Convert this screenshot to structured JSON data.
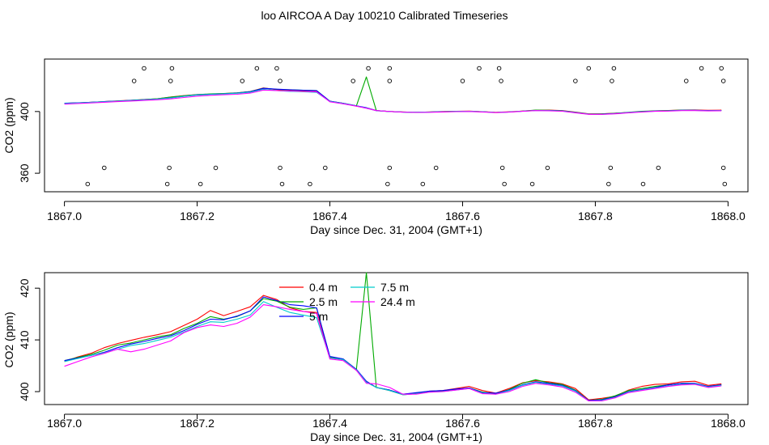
{
  "title": "loo AIRCOA A  Day 100210  Calibrated Timeseries",
  "chart_data": [
    {
      "type": "line",
      "xlabel": "Day since Dec. 31, 2004 (GMT+1)",
      "ylabel": "CO2 (ppm)",
      "xlim": [
        1866.97,
        1868.03
      ],
      "ylim": [
        348,
        434
      ],
      "xticks": [
        1867.0,
        1867.2,
        1867.4,
        1867.6,
        1867.8,
        1868.0
      ],
      "xtick_labels": [
        "1867.0",
        "1867.2",
        "1867.4",
        "1867.6",
        "1867.8",
        "1868.0"
      ],
      "yticks": [
        360,
        400
      ],
      "ytick_labels": [
        "360",
        "400"
      ],
      "x": [
        1867.0,
        1867.02,
        1867.04,
        1867.06,
        1867.08,
        1867.1,
        1867.12,
        1867.14,
        1867.16,
        1867.18,
        1867.2,
        1867.22,
        1867.24,
        1867.26,
        1867.28,
        1867.3,
        1867.32,
        1867.34,
        1867.36,
        1867.38,
        1867.4,
        1867.42,
        1867.44,
        1867.455,
        1867.47,
        1867.49,
        1867.51,
        1867.53,
        1867.55,
        1867.57,
        1867.59,
        1867.61,
        1867.63,
        1867.65,
        1867.67,
        1867.69,
        1867.71,
        1867.73,
        1867.75,
        1867.77,
        1867.79,
        1867.81,
        1867.83,
        1867.85,
        1867.87,
        1867.89,
        1867.91,
        1867.93,
        1867.95,
        1867.97,
        1867.99
      ],
      "series": [
        {
          "name": "0.4 m",
          "color": "#ff0000",
          "values": [
            405.3,
            405.6,
            406.0,
            406.4,
            406.9,
            407.3,
            407.8,
            408.3,
            409.4,
            410.3,
            411.0,
            411.3,
            411.6,
            412.1,
            412.9,
            415.3,
            414.2,
            413.8,
            413.6,
            413.3,
            406.5,
            405.3,
            403.5,
            402.4,
            400.6,
            400.0,
            399.7,
            399.5,
            399.7,
            400.0,
            400.2,
            400.3,
            399.9,
            399.5,
            399.8,
            400.3,
            400.8,
            400.9,
            400.6,
            399.6,
            398.5,
            398.5,
            398.9,
            399.4,
            399.9,
            400.4,
            400.7,
            400.9,
            401.0,
            400.8,
            400.9
          ]
        },
        {
          "name": "2.5 m",
          "color": "#00aa00",
          "values": [
            405.3,
            405.6,
            406.0,
            406.4,
            406.8,
            407.2,
            407.8,
            408.3,
            409.3,
            410.2,
            411.0,
            411.4,
            411.7,
            412.1,
            412.9,
            415.1,
            414.4,
            414.0,
            413.8,
            413.6,
            406.7,
            405.3,
            403.7,
            422.4,
            400.6,
            400.0,
            399.7,
            399.5,
            399.7,
            399.9,
            400.1,
            400.2,
            399.8,
            399.4,
            399.7,
            400.3,
            400.9,
            400.8,
            400.5,
            399.5,
            398.4,
            398.5,
            398.8,
            399.5,
            400.1,
            400.4,
            400.6,
            400.9,
            400.8,
            400.6,
            400.7
          ]
        },
        {
          "name": "5 m",
          "color": "#0000ff",
          "values": [
            405.4,
            405.7,
            406.0,
            406.4,
            406.8,
            407.2,
            407.6,
            408.1,
            408.9,
            409.9,
            410.8,
            411.2,
            411.5,
            412.0,
            412.8,
            415.0,
            414.5,
            414.1,
            413.8,
            413.5,
            406.7,
            405.3,
            403.7,
            402.5,
            400.6,
            400.0,
            399.6,
            399.5,
            399.6,
            399.9,
            400.0,
            400.1,
            399.8,
            399.4,
            399.7,
            400.2,
            400.7,
            400.7,
            400.4,
            399.4,
            398.3,
            398.3,
            398.7,
            399.4,
            399.9,
            400.3,
            400.5,
            400.8,
            400.8,
            400.6,
            400.7
          ]
        },
        {
          "name": "7.5 m",
          "color": "#00cccc",
          "values": [
            405.2,
            405.5,
            405.9,
            406.3,
            406.7,
            407.1,
            407.5,
            408.1,
            408.8,
            409.8,
            410.7,
            411.1,
            411.4,
            411.8,
            412.5,
            414.4,
            413.6,
            413.1,
            412.8,
            412.4,
            406.5,
            405.2,
            403.6,
            402.3,
            400.5,
            400.0,
            399.6,
            399.5,
            399.6,
            399.8,
            400.0,
            400.1,
            399.8,
            399.4,
            399.7,
            400.2,
            400.6,
            400.6,
            400.3,
            399.3,
            398.3,
            398.2,
            398.6,
            399.3,
            399.8,
            400.2,
            400.4,
            400.7,
            400.7,
            400.5,
            400.6
          ]
        },
        {
          "name": "24.4 m",
          "color": "#ff00ff",
          "values": [
            404.8,
            405.2,
            405.6,
            406.0,
            406.4,
            406.8,
            407.2,
            407.6,
            408.2,
            409.1,
            410.0,
            410.5,
            410.9,
            411.2,
            411.9,
            413.9,
            413.6,
            413.3,
            413.0,
            412.8,
            406.3,
            405.0,
            403.5,
            402.1,
            400.6,
            400.0,
            399.6,
            399.4,
            399.5,
            399.7,
            399.9,
            400.0,
            399.7,
            399.3,
            399.6,
            400.1,
            400.6,
            400.5,
            400.2,
            399.2,
            398.2,
            398.2,
            398.5,
            399.2,
            399.7,
            400.1,
            400.3,
            400.6,
            400.6,
            400.4,
            400.5
          ]
        }
      ],
      "markers": [
        {
          "x": 1867.035,
          "y": 353
        },
        {
          "x": 1867.06,
          "y": 363.5
        },
        {
          "x": 1867.105,
          "y": 419.8
        },
        {
          "x": 1867.12,
          "y": 428
        },
        {
          "x": 1867.155,
          "y": 353
        },
        {
          "x": 1867.158,
          "y": 363.5
        },
        {
          "x": 1867.16,
          "y": 419.8
        },
        {
          "x": 1867.162,
          "y": 428
        },
        {
          "x": 1867.205,
          "y": 353
        },
        {
          "x": 1867.228,
          "y": 363.5
        },
        {
          "x": 1867.268,
          "y": 419.8
        },
        {
          "x": 1867.29,
          "y": 428
        },
        {
          "x": 1867.32,
          "y": 428
        },
        {
          "x": 1867.325,
          "y": 419.8
        },
        {
          "x": 1867.325,
          "y": 363.5
        },
        {
          "x": 1867.328,
          "y": 353
        },
        {
          "x": 1867.37,
          "y": 353
        },
        {
          "x": 1867.393,
          "y": 363.5
        },
        {
          "x": 1867.435,
          "y": 419.8
        },
        {
          "x": 1867.458,
          "y": 428
        },
        {
          "x": 1867.487,
          "y": 353
        },
        {
          "x": 1867.49,
          "y": 363.5
        },
        {
          "x": 1867.49,
          "y": 419.8
        },
        {
          "x": 1867.49,
          "y": 428
        },
        {
          "x": 1867.54,
          "y": 353
        },
        {
          "x": 1867.56,
          "y": 363.5
        },
        {
          "x": 1867.6,
          "y": 419.8
        },
        {
          "x": 1867.625,
          "y": 428
        },
        {
          "x": 1867.655,
          "y": 428
        },
        {
          "x": 1867.658,
          "y": 419.8
        },
        {
          "x": 1867.66,
          "y": 363.5
        },
        {
          "x": 1867.663,
          "y": 353
        },
        {
          "x": 1867.705,
          "y": 353
        },
        {
          "x": 1867.728,
          "y": 363.5
        },
        {
          "x": 1867.77,
          "y": 419.8
        },
        {
          "x": 1867.79,
          "y": 428
        },
        {
          "x": 1867.82,
          "y": 353
        },
        {
          "x": 1867.823,
          "y": 363.5
        },
        {
          "x": 1867.825,
          "y": 419.8
        },
        {
          "x": 1867.828,
          "y": 428
        },
        {
          "x": 1867.872,
          "y": 353
        },
        {
          "x": 1867.895,
          "y": 363.5
        },
        {
          "x": 1867.937,
          "y": 419.8
        },
        {
          "x": 1867.96,
          "y": 428
        },
        {
          "x": 1867.99,
          "y": 428
        },
        {
          "x": 1867.993,
          "y": 419.8
        },
        {
          "x": 1867.993,
          "y": 363.5
        },
        {
          "x": 1867.995,
          "y": 353
        }
      ],
      "grid": false,
      "legend": "none"
    },
    {
      "type": "line",
      "xlabel": "Day since Dec. 31, 2004 (GMT+1)",
      "ylabel": "CO2 (ppm)",
      "xlim": [
        1866.97,
        1868.03
      ],
      "ylim": [
        397.5,
        423
      ],
      "xticks": [
        1867.0,
        1867.2,
        1867.4,
        1867.6,
        1867.8,
        1868.0
      ],
      "xtick_labels": [
        "1867.0",
        "1867.2",
        "1867.4",
        "1867.6",
        "1867.8",
        "1868.0"
      ],
      "yticks": [
        400,
        410,
        420
      ],
      "ytick_labels": [
        "400",
        "410",
        "420"
      ],
      "x": [
        1867.0,
        1867.02,
        1867.04,
        1867.06,
        1867.08,
        1867.1,
        1867.12,
        1867.14,
        1867.16,
        1867.18,
        1867.2,
        1867.22,
        1867.24,
        1867.26,
        1867.28,
        1867.3,
        1867.32,
        1867.34,
        1867.36,
        1867.38,
        1867.4,
        1867.42,
        1867.44,
        1867.455,
        1867.47,
        1867.49,
        1867.51,
        1867.53,
        1867.55,
        1867.57,
        1867.59,
        1867.61,
        1867.63,
        1867.65,
        1867.67,
        1867.69,
        1867.71,
        1867.73,
        1867.75,
        1867.77,
        1867.79,
        1867.81,
        1867.83,
        1867.85,
        1867.87,
        1867.89,
        1867.91,
        1867.93,
        1867.95,
        1867.97,
        1867.99
      ],
      "series": [
        {
          "name": "0.4 m",
          "color": "#ff0000",
          "values": [
            405.8,
            406.7,
            407.4,
            408.5,
            409.3,
            409.9,
            410.5,
            411.0,
            411.6,
            412.8,
            414.0,
            415.7,
            414.7,
            415.5,
            416.4,
            418.6,
            417.8,
            416.2,
            415.5,
            415.3,
            406.5,
            406.2,
            404.1,
            402.0,
            400.8,
            400.2,
            399.4,
            399.6,
            400.1,
            400.2,
            400.6,
            401.0,
            400.2,
            399.7,
            400.6,
            401.7,
            402.1,
            401.9,
            401.5,
            400.6,
            398.4,
            398.7,
            399.1,
            400.3,
            401.0,
            401.4,
            401.5,
            401.9,
            402.0,
            401.2,
            401.5
          ]
        },
        {
          "name": "2.5 m",
          "color": "#00aa00",
          "values": [
            406.0,
            406.6,
            407.2,
            408.0,
            409.0,
            409.4,
            410.0,
            410.6,
            411.0,
            412.2,
            413.2,
            414.5,
            414.0,
            414.5,
            415.6,
            418.0,
            417.5,
            416.3,
            415.9,
            416.2,
            406.7,
            406.3,
            404.3,
            423.0,
            400.8,
            400.3,
            399.5,
            399.7,
            400.0,
            400.1,
            400.4,
            400.7,
            399.9,
            399.6,
            400.4,
            401.6,
            402.3,
            401.7,
            401.4,
            400.3,
            398.3,
            398.5,
            399.2,
            400.2,
            400.6,
            401.0,
            401.3,
            401.6,
            401.6,
            401.0,
            401.3
          ]
        },
        {
          "name": "5 m",
          "color": "#0000ff",
          "values": [
            406.0,
            406.5,
            407.0,
            407.6,
            408.5,
            409.2,
            409.7,
            410.3,
            410.8,
            411.8,
            413.0,
            414.0,
            413.9,
            414.6,
            415.6,
            418.3,
            417.6,
            416.8,
            416.6,
            416.2,
            406.8,
            406.3,
            404.3,
            402.0,
            400.8,
            400.3,
            399.5,
            399.8,
            400.1,
            400.2,
            400.5,
            400.7,
            399.8,
            399.7,
            400.3,
            401.3,
            401.9,
            401.6,
            401.2,
            400.2,
            398.3,
            398.4,
            399.0,
            400.0,
            400.4,
            400.8,
            401.3,
            401.6,
            401.6,
            401.0,
            401.3
          ]
        },
        {
          "name": "7.5 m",
          "color": "#00cccc",
          "values": [
            405.8,
            406.4,
            407.0,
            407.5,
            408.2,
            408.9,
            409.3,
            409.9,
            410.5,
            411.5,
            412.6,
            413.5,
            413.4,
            414.0,
            414.8,
            417.4,
            416.3,
            415.3,
            414.8,
            414.3,
            406.5,
            406.2,
            404.2,
            401.8,
            400.8,
            400.2,
            399.4,
            399.6,
            399.9,
            400.0,
            400.3,
            400.6,
            399.7,
            399.5,
            400.2,
            401.2,
            401.8,
            401.4,
            401.1,
            400.1,
            398.2,
            398.3,
            398.9,
            399.9,
            400.3,
            400.7,
            401.1,
            401.4,
            401.5,
            400.9,
            401.2
          ]
        },
        {
          "name": "24.4 m",
          "color": "#ff00ff",
          "values": [
            404.9,
            405.8,
            406.7,
            407.4,
            408.2,
            407.7,
            408.2,
            409.0,
            409.8,
            411.4,
            412.4,
            412.9,
            412.6,
            413.2,
            414.4,
            416.8,
            416.4,
            415.9,
            415.5,
            415.1,
            406.3,
            406.0,
            404.1,
            401.6,
            401.5,
            400.8,
            399.5,
            399.5,
            399.9,
            400.0,
            400.3,
            400.6,
            399.6,
            399.5,
            400.0,
            401.0,
            401.6,
            401.3,
            400.9,
            399.9,
            398.2,
            398.2,
            398.8,
            399.8,
            400.2,
            400.6,
            401.0,
            401.3,
            401.4,
            400.8,
            401.1
          ]
        }
      ],
      "grid": false,
      "legend": "top-left"
    }
  ]
}
